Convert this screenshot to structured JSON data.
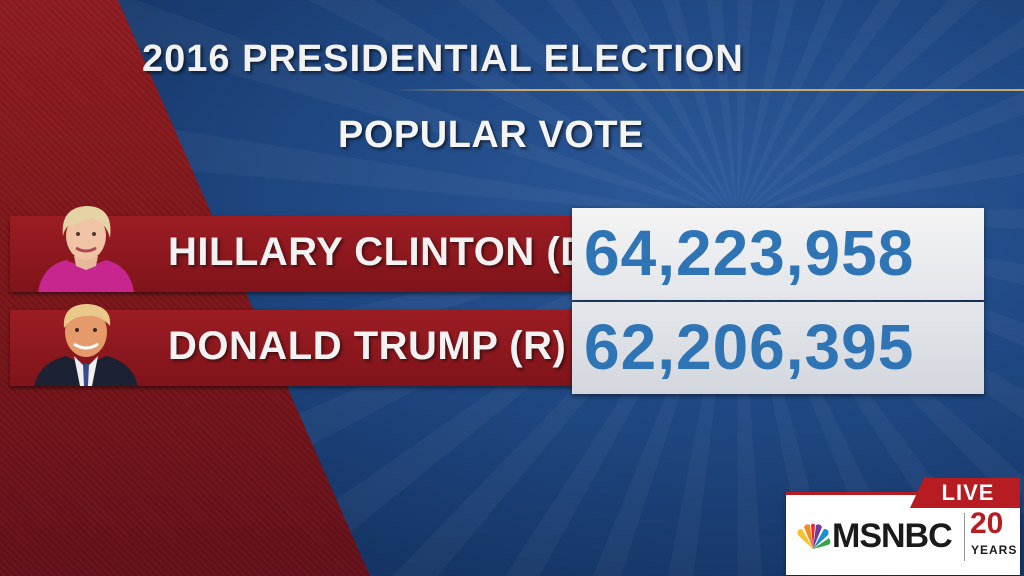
{
  "header": {
    "title": "2016 PRESIDENTIAL ELECTION",
    "subtitle": "POPULAR VOTE"
  },
  "candidates": [
    {
      "name": "HILLARY CLINTON (D)",
      "votes": "64,223,958",
      "portrait_icon": "hillary-clinton-portrait"
    },
    {
      "name": "DONALD TRUMP (R)",
      "votes": "62,206,395",
      "portrait_icon": "donald-trump-portrait"
    }
  ],
  "network_bug": {
    "live_label": "LIVE",
    "network_name": "MSNBC",
    "anniversary_number": "20",
    "anniversary_label": "YEARS",
    "logo_icon": "nbc-peacock-icon"
  },
  "colors": {
    "red_panel": "#8e1c20",
    "blue_background": "#1f4883",
    "vote_number": "#2f74b5",
    "live_red": "#b71c22"
  }
}
